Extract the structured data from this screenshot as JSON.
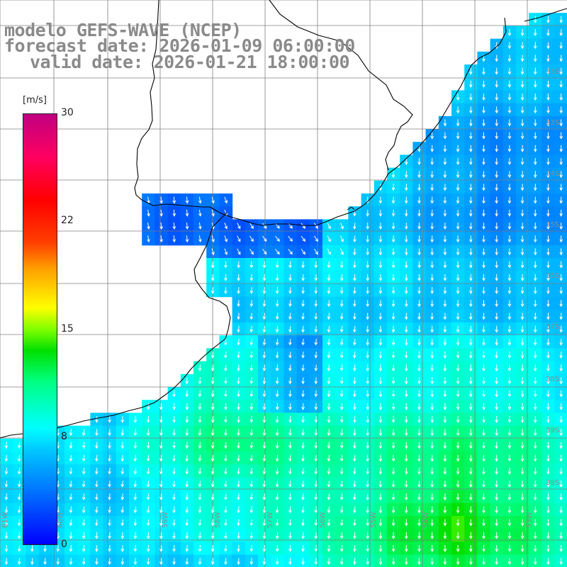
{
  "header": {
    "line1": "modelo GEFS-WAVE (NCEP)",
    "line2": "forecast date: 2026-01-09 06:00:00",
    "line3": "valid date: 2026-01-21 18:00:00"
  },
  "colorbar": {
    "unit": "[m/s]",
    "ticks": [
      "30",
      "22",
      "15",
      "8",
      "0"
    ],
    "tick_values": [
      30,
      22,
      15,
      8,
      0
    ],
    "min": 0,
    "max": 30,
    "colors": [
      "#0000ff",
      "#00c8ff",
      "#00ffff",
      "#00e000",
      "#ffff00",
      "#ff0000",
      "#c00080"
    ]
  },
  "map": {
    "background": "#ffffff",
    "land": "#ffffff",
    "coastline_color": "#000000",
    "grid_color": "#808080",
    "arrow_color": "#ffffff",
    "lat_labels": [
      "33S",
      "33S",
      "34S",
      "35S",
      "36S",
      "37S",
      "38S",
      "39S",
      "39S",
      "40S"
    ],
    "lon_labels": [
      "61W",
      "60W",
      "59W",
      "58W",
      "57W",
      "56W",
      "55W",
      "54W",
      "53W"
    ]
  },
  "wind_field": {
    "quantity": "wind speed at 10 m",
    "unit": "m/s",
    "general_direction": "toward south-southwest",
    "regions": [
      {
        "area": "Rio de la Plata inner estuary",
        "speed": 2
      },
      {
        "area": "Uruguay offshore",
        "speed": 6
      },
      {
        "area": "Buenos Aires coast south",
        "speed": 11
      },
      {
        "area": "open ocean south-east",
        "speed": 13
      }
    ]
  }
}
